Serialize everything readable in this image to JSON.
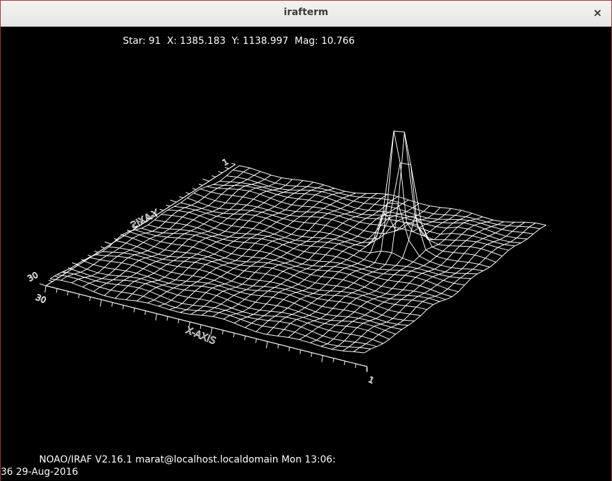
{
  "window": {
    "title": "irafterm",
    "close_glyph": "×"
  },
  "plot": {
    "star_info": "Star: 91  X: 1385.183  Y: 1138.997  Mag: 10.766",
    "y_axis_label": "Y-AXIS",
    "x_axis_label": "X-AXIS",
    "axis_ticks": {
      "y_min": "1",
      "y_max": "30",
      "x_min": "1",
      "x_max": "30"
    },
    "line_color": "#ffffff",
    "background": "#000000"
  },
  "footer": {
    "line1": "NOAO/IRAF V2.16.1 marat@localhost.localdomain Mon 13:06:",
    "line2": "36 29-Aug-2016"
  }
}
